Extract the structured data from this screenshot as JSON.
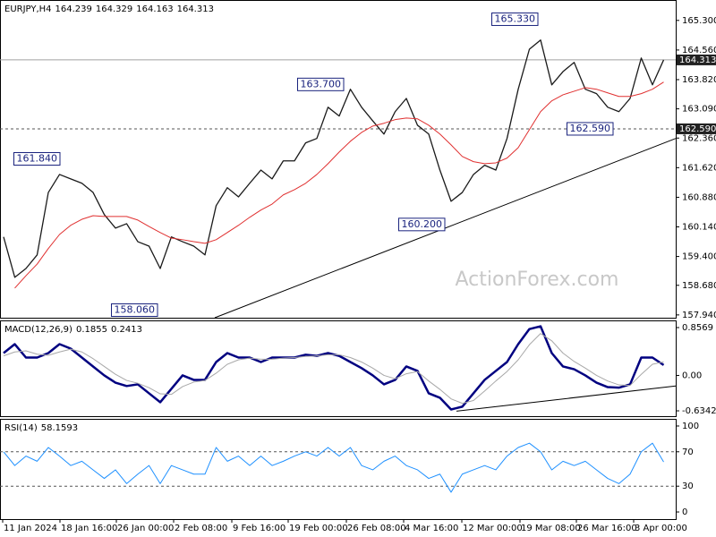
{
  "chart_data": [
    {
      "type": "line",
      "title": "EURJPY,H4",
      "last_bar": {
        "open": 164.239,
        "high": 164.329,
        "low": 164.163
      },
      "watermark": "ActionForex.com",
      "last_price_marker": true,
      "x": [
        0,
        1,
        2,
        3,
        4,
        5,
        6,
        7,
        8,
        9,
        10,
        11,
        12,
        13,
        14,
        15,
        16,
        17,
        18,
        19,
        20,
        21,
        22,
        23,
        24,
        25,
        26,
        27,
        28,
        29,
        30,
        31,
        32,
        33,
        34,
        35,
        36,
        37,
        38,
        39,
        40,
        41,
        42,
        43,
        44,
        45,
        46,
        47,
        48,
        49,
        50,
        51,
        52,
        53,
        54,
        55,
        56,
        57,
        58,
        59
      ],
      "xlim": [
        -0.32,
        60.08
      ],
      "ylim": [
        157.87,
        165.81
      ],
      "yticks": [
        {
          "value": 165.3,
          "label": "165.300"
        },
        {
          "value": 164.56,
          "label": "164.560"
        },
        {
          "value": 163.82,
          "label": "163.820"
        },
        {
          "value": 163.09,
          "label": "163.090"
        },
        {
          "value": 162.36,
          "label": "162.360"
        },
        {
          "value": 161.62,
          "label": "161.620"
        },
        {
          "value": 160.88,
          "label": "160.880"
        },
        {
          "value": 160.14,
          "label": "160.140"
        },
        {
          "value": 159.4,
          "label": "159.400"
        },
        {
          "value": 158.68,
          "label": "158.680"
        },
        {
          "value": 157.94,
          "label": "157.940"
        }
      ],
      "series": [
        {
          "color": "#1a1a1a",
          "line_width": 1.3,
          "values": [
            159.89,
            158.88,
            159.1,
            159.44,
            161.0,
            161.45,
            161.34,
            161.23,
            161.0,
            160.45,
            160.11,
            160.22,
            159.77,
            159.66,
            159.1,
            159.89,
            159.77,
            159.66,
            159.44,
            160.67,
            161.12,
            160.89,
            161.23,
            161.56,
            161.34,
            161.79,
            161.79,
            162.24,
            162.35,
            163.13,
            162.91,
            163.58,
            163.13,
            162.79,
            162.46,
            163.02,
            163.35,
            162.68,
            162.46,
            161.56,
            160.78,
            161.0,
            161.45,
            161.68,
            161.56,
            162.35,
            163.58,
            164.58,
            164.81,
            163.69,
            164.02,
            164.25,
            163.58,
            163.47,
            163.13,
            163.02,
            163.35,
            164.36,
            163.69,
            164.313
          ]
        },
        {
          "color": "#e03030",
          "line_width": 1,
          "values": [
            null,
            158.61,
            158.92,
            159.21,
            159.6,
            159.95,
            160.18,
            160.33,
            160.42,
            160.4,
            160.4,
            160.4,
            160.31,
            160.15,
            160.0,
            159.86,
            159.82,
            159.77,
            159.73,
            159.82,
            160.0,
            160.18,
            160.38,
            160.56,
            160.71,
            160.94,
            161.07,
            161.23,
            161.45,
            161.72,
            162.01,
            162.28,
            162.5,
            162.66,
            162.73,
            162.82,
            162.86,
            162.84,
            162.68,
            162.46,
            162.19,
            161.9,
            161.77,
            161.72,
            161.74,
            161.86,
            162.12,
            162.57,
            163.02,
            163.29,
            163.44,
            163.53,
            163.62,
            163.58,
            163.49,
            163.4,
            163.4,
            163.47,
            163.58,
            163.76
          ]
        }
      ],
      "hlines": [
        {
          "value": 162.59,
          "label": "162.590",
          "style": "dashed"
        }
      ],
      "trendlines": [
        {
          "x": [
            18.88,
            60.08
          ],
          "y": [
            157.87,
            162.35
          ]
        }
      ],
      "annotations": [
        {
          "x": 47.76,
          "value": 165.33,
          "label": "165.330"
        },
        {
          "x": 30.4,
          "value": 163.7,
          "label": "163.700"
        },
        {
          "x": 5.04,
          "value": 161.84,
          "label": "161.840"
        },
        {
          "x": 39.44,
          "value": 160.2,
          "label": "160.200"
        },
        {
          "x": 13.76,
          "value": 158.06,
          "label": "158.060"
        },
        {
          "x": 54.48,
          "value": 162.59,
          "label": "162.590"
        }
      ]
    },
    {
      "type": "line",
      "title": "MACD(12,26,9)",
      "x": [
        0,
        1,
        2,
        3,
        4,
        5,
        6,
        7,
        8,
        9,
        10,
        11,
        12,
        13,
        14,
        15,
        16,
        17,
        18,
        19,
        20,
        21,
        22,
        23,
        24,
        25,
        26,
        27,
        28,
        29,
        30,
        31,
        32,
        33,
        34,
        35,
        36,
        37,
        38,
        39,
        40,
        41,
        42,
        43,
        44,
        45,
        46,
        47,
        48,
        49,
        50,
        51,
        52,
        53,
        54,
        55,
        56,
        57,
        58,
        59
      ],
      "xlim": [
        -0.32,
        60.08
      ],
      "ylim": [
        -0.73,
        0.985
      ],
      "yticks": [
        0.8569,
        {
          "value": 0,
          "label": "0.00"
        },
        -0.6342
      ],
      "series": [
        {
          "color": "#000080",
          "line_width": 2.5,
          "values": [
            0.4,
            0.56,
            0.32,
            0.32,
            0.4,
            0.56,
            0.48,
            0.32,
            0.16,
            0.0,
            -0.13,
            -0.19,
            -0.16,
            -0.32,
            -0.48,
            -0.24,
            0.0,
            -0.08,
            -0.08,
            0.24,
            0.4,
            0.32,
            0.32,
            0.24,
            0.32,
            0.32,
            0.32,
            0.37,
            0.35,
            0.4,
            0.35,
            0.24,
            0.13,
            0.0,
            -0.16,
            -0.08,
            0.16,
            0.08,
            -0.32,
            -0.4,
            -0.61,
            -0.56,
            -0.32,
            -0.08,
            0.08,
            0.24,
            0.56,
            0.83,
            0.88,
            0.4,
            0.16,
            0.11,
            0.0,
            -0.13,
            -0.21,
            -0.22,
            -0.16,
            0.32,
            0.32,
            0.1855
          ]
        },
        {
          "color": "#a8a8a8",
          "line_width": 1,
          "values": [
            0.35,
            0.42,
            0.44,
            0.38,
            0.36,
            0.42,
            0.47,
            0.42,
            0.3,
            0.16,
            0.02,
            -0.09,
            -0.14,
            -0.22,
            -0.33,
            -0.34,
            -0.2,
            -0.12,
            -0.09,
            0.04,
            0.2,
            0.28,
            0.31,
            0.29,
            0.29,
            0.31,
            0.32,
            0.34,
            0.35,
            0.37,
            0.37,
            0.32,
            0.24,
            0.13,
            0.0,
            -0.06,
            0.03,
            0.07,
            -0.1,
            -0.25,
            -0.42,
            -0.5,
            -0.45,
            -0.28,
            -0.1,
            0.07,
            0.28,
            0.55,
            0.75,
            0.62,
            0.4,
            0.25,
            0.13,
            0.0,
            -0.1,
            -0.17,
            -0.18,
            0.02,
            0.2,
            0.2413
          ]
        }
      ],
      "trendlines": [
        {
          "x": [
            40.48,
            60.08
          ],
          "y": [
            -0.64,
            -0.19
          ]
        }
      ]
    },
    {
      "type": "line",
      "title": "RSI(14)",
      "x": [
        0,
        1,
        2,
        3,
        4,
        5,
        6,
        7,
        8,
        9,
        10,
        11,
        12,
        13,
        14,
        15,
        16,
        17,
        18,
        19,
        20,
        21,
        22,
        23,
        24,
        25,
        26,
        27,
        28,
        29,
        30,
        31,
        32,
        33,
        34,
        35,
        36,
        37,
        38,
        39,
        40,
        41,
        42,
        43,
        44,
        45,
        46,
        47,
        48,
        49,
        50,
        51,
        52,
        53,
        54,
        55,
        56,
        57,
        58,
        59
      ],
      "xlim": [
        -0.32,
        60.08
      ],
      "ylim": [
        -8.3,
        108.3
      ],
      "yticks": [
        100,
        70,
        30,
        0
      ],
      "series": [
        {
          "color": "#1e90ff",
          "line_width": 1,
          "values": [
            70,
            54,
            65,
            59,
            75,
            65,
            54,
            59,
            49,
            39,
            49,
            33,
            44,
            54,
            33,
            54,
            49,
            44,
            44,
            75,
            59,
            65,
            54,
            65,
            54,
            59,
            65,
            70,
            65,
            75,
            65,
            75,
            54,
            49,
            59,
            65,
            54,
            49,
            39,
            44,
            23,
            44,
            49,
            54,
            49,
            65,
            75,
            80,
            70,
            49,
            59,
            54,
            59,
            49,
            39,
            33,
            44,
            70,
            80,
            58.1593
          ]
        }
      ],
      "hlines": [
        {
          "value": 70,
          "style": "dashed"
        },
        {
          "value": 30,
          "style": "dashed"
        }
      ],
      "xticks": [
        {
          "value": -0.08,
          "label": "11 Jan 2024"
        },
        {
          "value": 5.04,
          "label": "18 Jan 16:00"
        },
        {
          "value": 10.08,
          "label": "26 Jan 00:00"
        },
        {
          "value": 15.2,
          "label": "2 Feb 08:00"
        },
        {
          "value": 20.4,
          "label": "9 Feb 16:00"
        },
        {
          "value": 25.44,
          "label": "19 Feb 00:00"
        },
        {
          "value": 30.64,
          "label": "26 Feb 08:00"
        },
        {
          "value": 35.76,
          "label": "4 Mar 16:00"
        },
        {
          "value": 40.96,
          "label": "12 Mar 00:00"
        },
        {
          "value": 46.16,
          "label": "19 Mar 08:00"
        },
        {
          "value": 51.2,
          "label": "26 Mar 16:00"
        },
        {
          "value": 56.32,
          "label": "3 Apr 00:00"
        }
      ]
    }
  ]
}
